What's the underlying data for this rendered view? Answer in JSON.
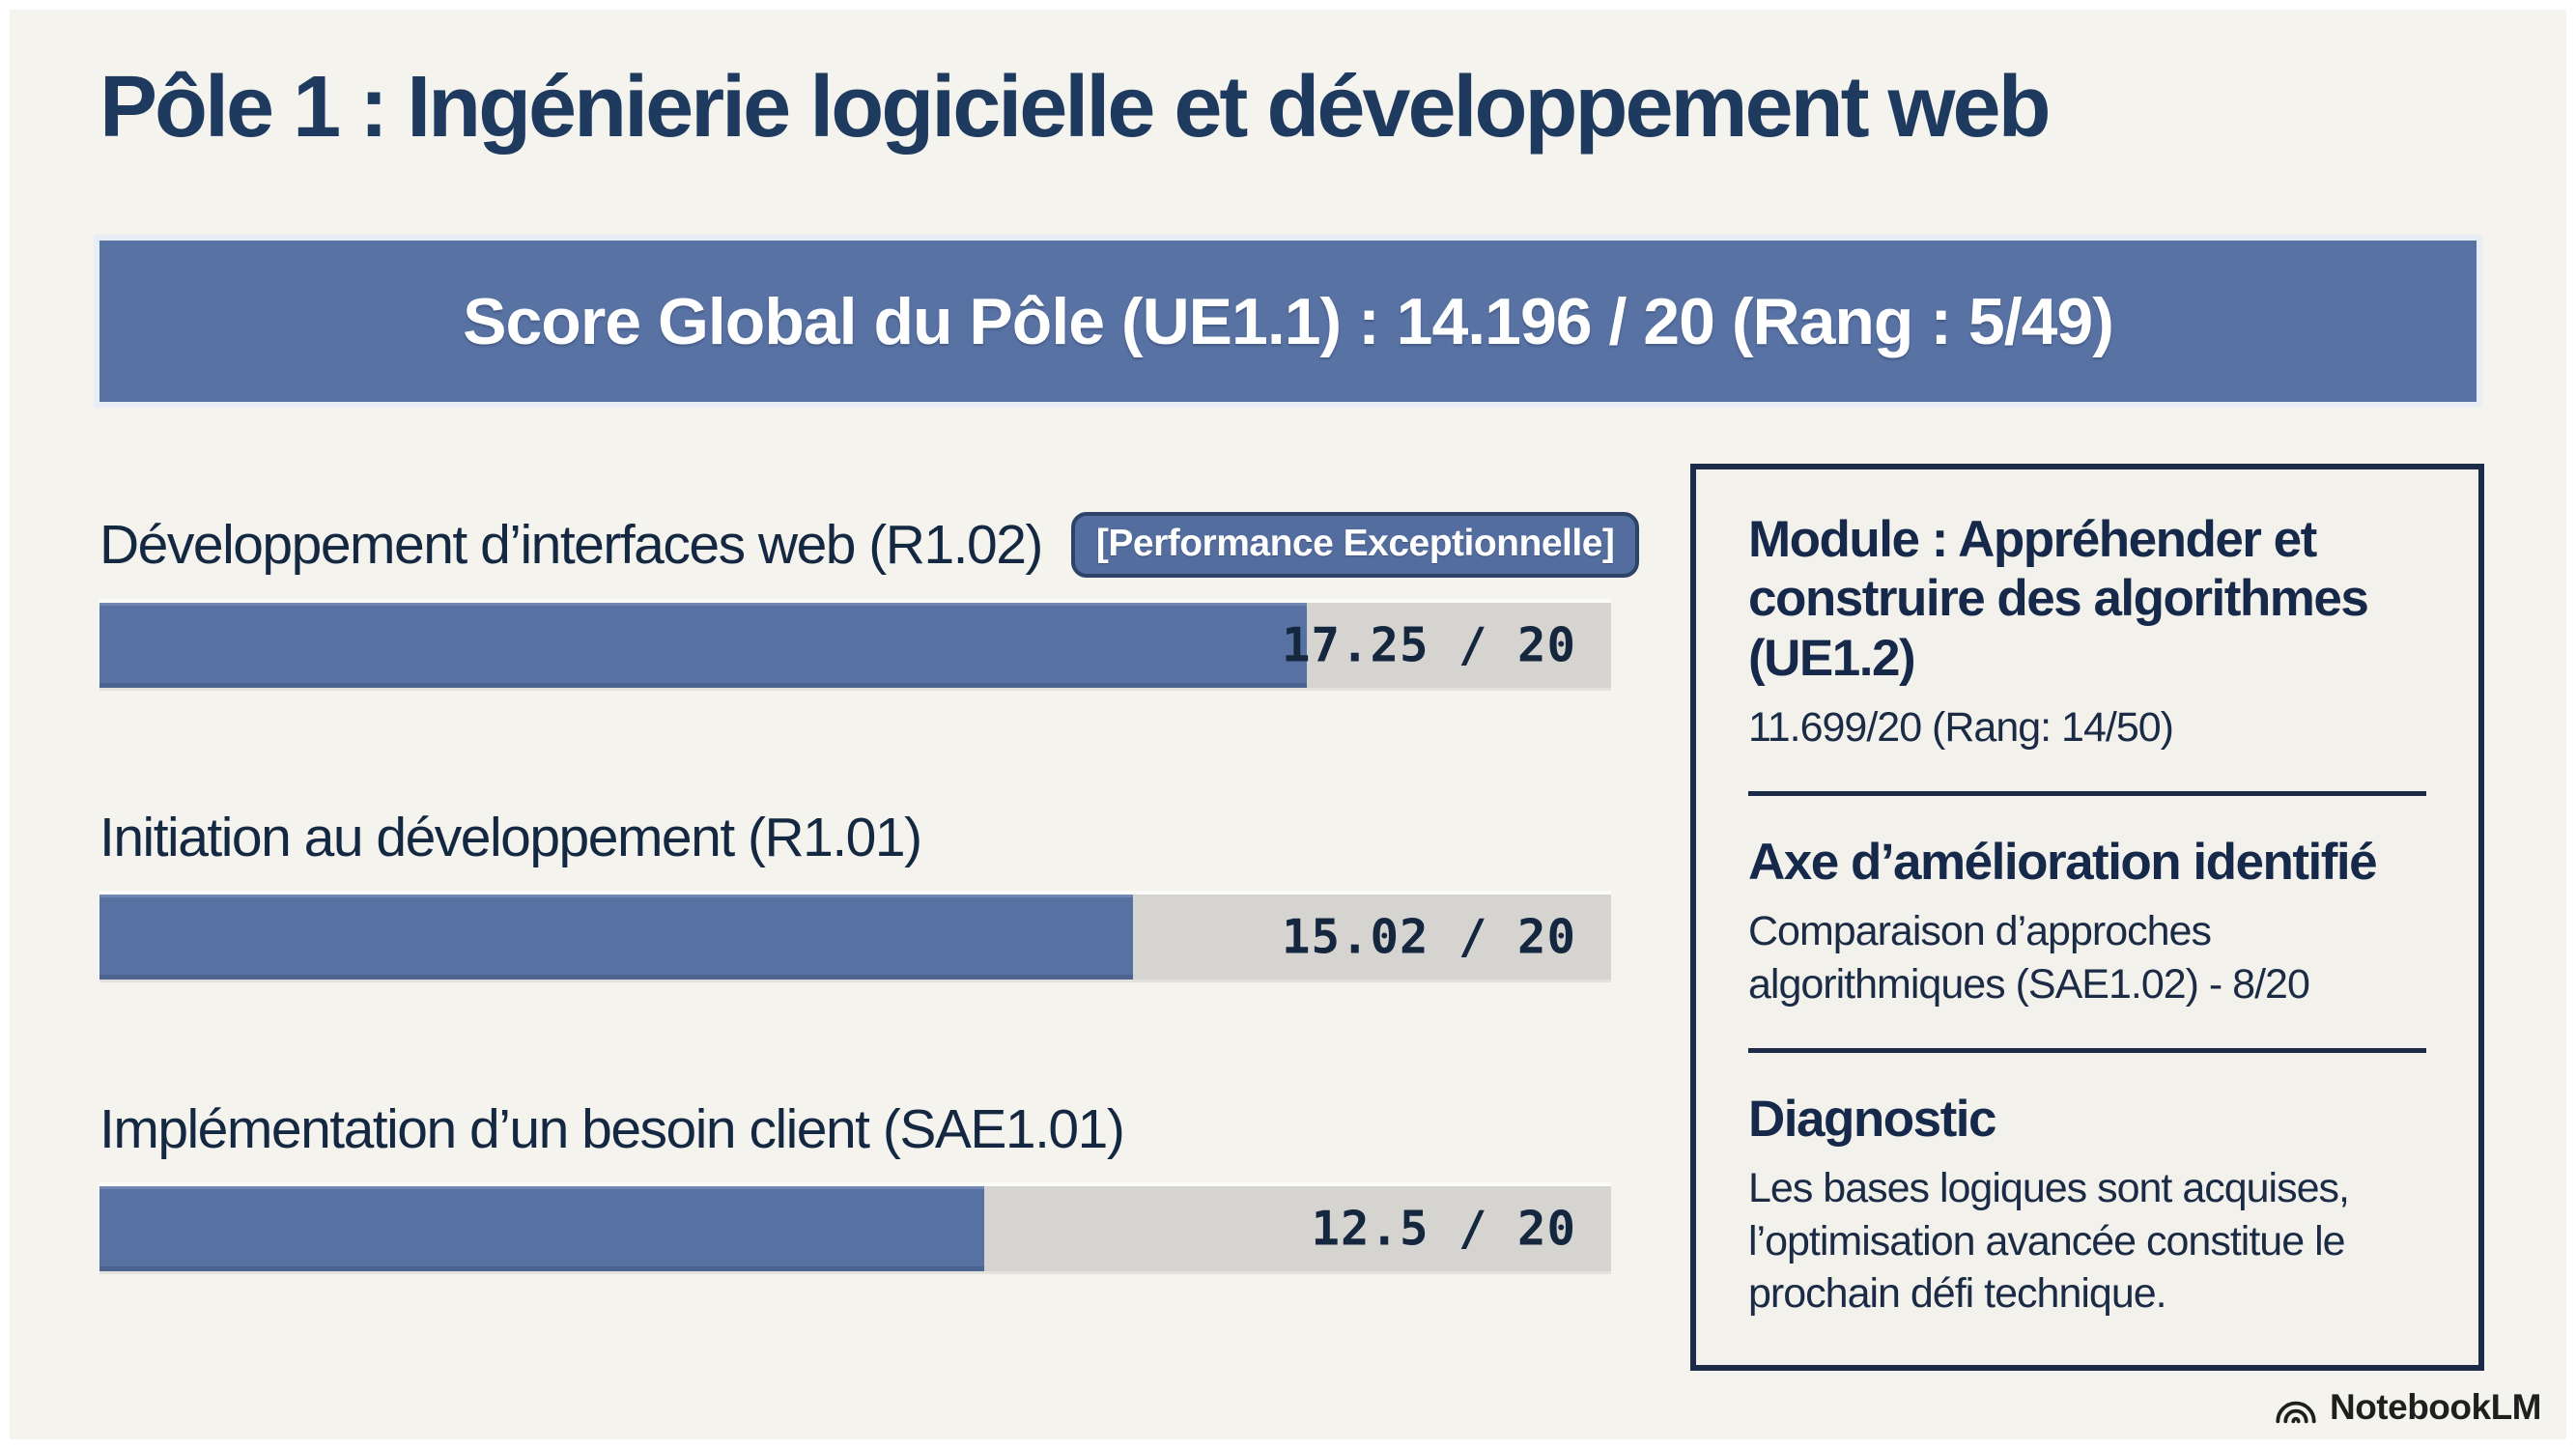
{
  "page": {
    "title": "Pôle 1 : Ingénierie logicielle et développement web",
    "footer_brand": "NotebookLM"
  },
  "banner": {
    "text": "Score Global du Pôle (UE1.1) : 14.196 / 20 (Rang : 5/49)",
    "ue": "UE1.1",
    "score": 14.196,
    "max": 20,
    "rank": "5/49"
  },
  "chart_data": {
    "type": "bar",
    "orientation": "horizontal",
    "title": "Score Global du Pôle (UE1.1) : 14.196 / 20 (Rang : 5/49)",
    "xlim": [
      0,
      20
    ],
    "grid": false,
    "legend": false,
    "categories": [
      "Développement d’interfaces web (R1.02)",
      "Initiation au développement (R1.01)",
      "Implémentation d’un besoin client (SAE1.01)"
    ],
    "values": [
      17.25,
      15.02,
      12.5
    ],
    "value_labels": [
      "17.25 / 20",
      "15.02 / 20",
      "12.5 / 20"
    ],
    "badges": [
      "[Performance Exceptionnelle]",
      null,
      null
    ],
    "max_score": 20,
    "fill_ratios_visual": [
      0.799,
      0.684,
      0.585
    ]
  },
  "info_panel": {
    "sections": [
      {
        "heading": "Module : Appréhender et construire des algorithmes (UE1.2)",
        "body": "11.699/20 (Rang: 14/50)"
      },
      {
        "heading": "Axe d’amélioration identifié",
        "body": "Comparaison d’approches algorithmiques (SAE1.02) - 8/20"
      },
      {
        "heading": "Diagnostic",
        "body": "Les bases logiques sont acquises, l’optimisation avancée constitue le prochain défi technique."
      }
    ]
  },
  "colors": {
    "background": "#f4f3ee",
    "accent_blue": "#5671a2",
    "banner_blue": "#5872a4",
    "navy_text": "#1e3a5f",
    "dark_navy_border": "#1c2b47",
    "track_gray": "#d5d4d0",
    "badge_border": "#2e4368",
    "white": "#ffffff"
  },
  "icons": {
    "notebooklm_icon": "three nested arcs (NotebookLM logo)"
  }
}
